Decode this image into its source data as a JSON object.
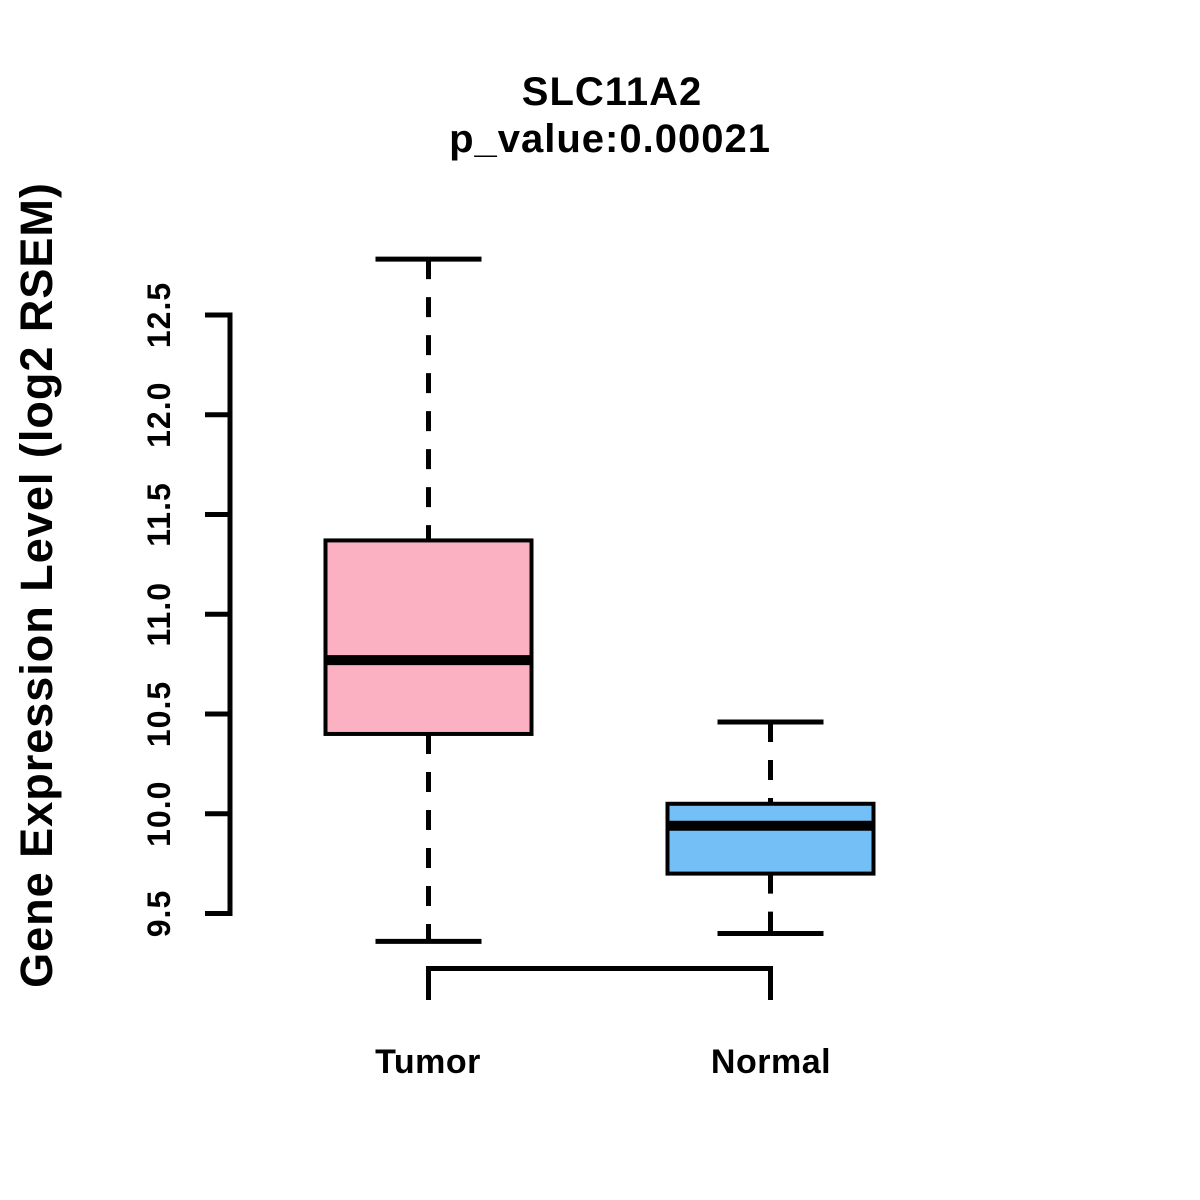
{
  "chart_data": {
    "type": "box",
    "title": "SLC11A2",
    "subtitle": "p_value:0.00021",
    "ylabel": "Gene Expression Level (log2 RSEM)",
    "xlabel": "",
    "ylim": [
      9.3,
      12.85
    ],
    "yticks": [
      9.5,
      10.0,
      10.5,
      11.0,
      11.5,
      12.0,
      12.5
    ],
    "ytick_labels": [
      "9.5",
      "10.0",
      "10.5",
      "11.0",
      "11.5",
      "12.0",
      "12.5"
    ],
    "grid": false,
    "legend": "none",
    "categories": [
      "Tumor",
      "Normal"
    ],
    "groups": [
      {
        "label": "Tumor",
        "fill": "#FCB1C3",
        "whisker_low": 9.36,
        "q1": 10.4,
        "median": 10.77,
        "q3": 11.37,
        "whisker_high": 12.78
      },
      {
        "label": "Normal",
        "fill": "#74BFF5",
        "whisker_low": 9.4,
        "q1": 9.7,
        "median": 9.94,
        "q3": 10.05,
        "whisker_high": 10.46
      }
    ],
    "colors": {
      "stroke": "#000000",
      "background": "#FFFFFF",
      "tumor_fill": "#FCB1C3",
      "normal_fill": "#74BFF5"
    }
  }
}
